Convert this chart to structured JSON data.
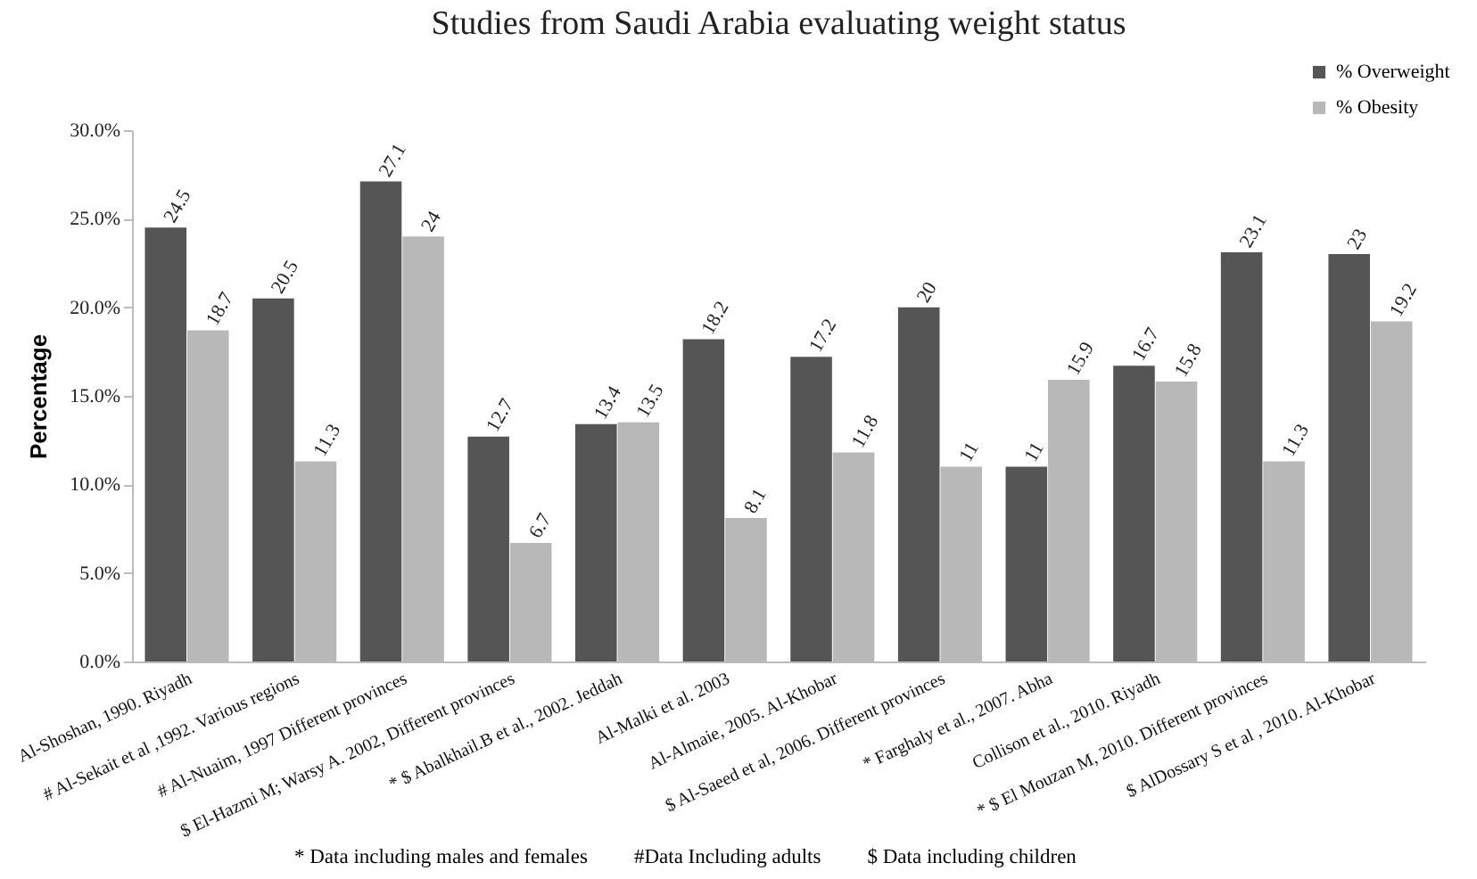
{
  "chart_data": {
    "type": "bar",
    "title": "Studies from Saudi Arabia evaluating weight status",
    "ylabel": "Percentage",
    "categories": [
      "Al-Shoshan, 1990. Riyadh",
      "# Al-Sekait et al ,1992. Various regions",
      "# Al-Nuaim, 1997  Different provinces",
      "$ El-Hazmi M; Warsy A. 2002, Different provinces",
      "* $ Abalkhail.B et al., 2002. Jeddah",
      "Al-Malki et al. 2003",
      "Al-Almaie, 2005. Al-Khobar",
      "$ Al-Saeed et al, 2006. Different provinces",
      "* Farghaly et al., 2007. Abha",
      "Collison et al., 2010. Riyadh",
      "* $ El Mouzan M, 2010. Different provinces",
      "$ AlDossary S et al , 2010. Al-Khobar"
    ],
    "series": [
      {
        "name": "% Overweight",
        "color": "#555555",
        "values": [
          24.5,
          20.5,
          27.1,
          12.7,
          13.4,
          18.2,
          17.2,
          20,
          11,
          16.7,
          23.1,
          23
        ]
      },
      {
        "name": "% Obesity",
        "color": "#b8b8b8",
        "values": [
          18.7,
          11.3,
          24,
          6.7,
          13.5,
          8.1,
          11.8,
          11,
          15.9,
          15.8,
          11.3,
          19.2
        ]
      }
    ],
    "ylim": [
      0,
      30
    ],
    "yticks": [
      {
        "value": 0,
        "label": "0.0%"
      },
      {
        "value": 5,
        "label": "5.0%"
      },
      {
        "value": 10,
        "label": "10.0%"
      },
      {
        "value": 15,
        "label": "15.0%"
      },
      {
        "value": 20,
        "label": "20.0%"
      },
      {
        "value": 25,
        "label": "25.0%"
      },
      {
        "value": 30,
        "label": "30.0%"
      }
    ],
    "data_labels": true,
    "legend": "top right",
    "grid": false,
    "annotations": [
      "* Data including males and females",
      "#Data Including adults",
      "$ Data including children"
    ]
  }
}
